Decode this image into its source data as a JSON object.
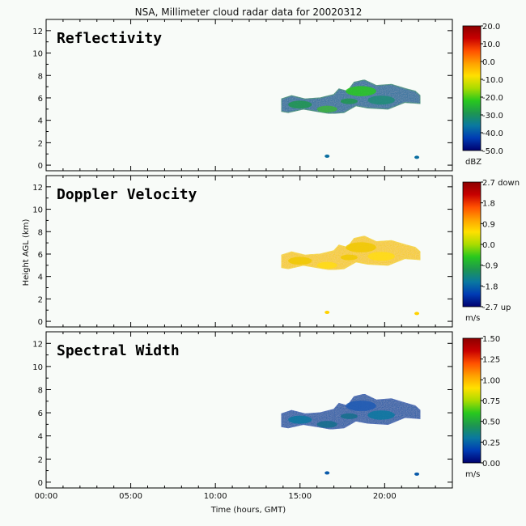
{
  "title": "NSA, Millimeter cloud radar data for 20020312",
  "xlabel": "Time (hours, GMT)",
  "ylabel": "Height AGL (km)",
  "chart_data": [
    {
      "type": "heatmap",
      "panel_title": "Reflectivity",
      "x_ticks": [
        "00:00",
        "05:00",
        "10:00",
        "15:00",
        "20:00"
      ],
      "x_tick_values": [
        0,
        5,
        10,
        15,
        20
      ],
      "xlim": [
        0,
        24
      ],
      "y_ticks": [
        "0",
        "2",
        "4",
        "6",
        "8",
        "10",
        "12"
      ],
      "y_tick_values": [
        0,
        2,
        4,
        6,
        8,
        10,
        12
      ],
      "ylim": [
        -0.5,
        13
      ],
      "colorbar": {
        "ticks": [
          "20.0",
          "10.0",
          "0.0",
          "-10.0",
          "-20.0",
          "-30.0",
          "-40.0",
          "-50.0"
        ],
        "range": [
          -50,
          20
        ],
        "unit": "dBZ"
      },
      "cloud": {
        "time_range": [
          13.9,
          22.1
        ],
        "base_km": 4.6,
        "top_km": 7.6,
        "fill": "low-mid"
      }
    },
    {
      "type": "heatmap",
      "panel_title": "Doppler Velocity",
      "x_ticks": [
        "00:00",
        "05:00",
        "10:00",
        "15:00",
        "20:00"
      ],
      "x_tick_values": [
        0,
        5,
        10,
        15,
        20
      ],
      "xlim": [
        0,
        24
      ],
      "y_ticks": [
        "0",
        "2",
        "4",
        "6",
        "8",
        "10",
        "12"
      ],
      "y_tick_values": [
        0,
        2,
        4,
        6,
        8,
        10,
        12
      ],
      "ylim": [
        -0.5,
        13
      ],
      "colorbar": {
        "ticks": [
          "2.7 down",
          "1.8",
          "0.9",
          "0.0",
          "-0.9",
          "-1.8",
          "-2.7 up"
        ],
        "range": [
          -2.7,
          2.7
        ],
        "unit": "m/s"
      },
      "cloud": {
        "time_range": [
          13.9,
          22.1
        ],
        "base_km": 4.6,
        "top_km": 7.6,
        "fill": "mid"
      }
    },
    {
      "type": "heatmap",
      "panel_title": "Spectral Width",
      "x_ticks": [
        "00:00",
        "05:00",
        "10:00",
        "15:00",
        "20:00"
      ],
      "x_tick_values": [
        0,
        5,
        10,
        15,
        20
      ],
      "xlim": [
        0,
        24
      ],
      "y_ticks": [
        "0",
        "2",
        "4",
        "6",
        "8",
        "10",
        "12"
      ],
      "y_tick_values": [
        0,
        2,
        4,
        6,
        8,
        10,
        12
      ],
      "ylim": [
        -0.5,
        13
      ],
      "colorbar": {
        "ticks": [
          "1.50",
          "1.25",
          "1.00",
          "0.75",
          "0.50",
          "0.25",
          "0.00"
        ],
        "range": [
          0,
          1.5
        ],
        "unit": "m/s"
      },
      "cloud": {
        "time_range": [
          13.9,
          22.1
        ],
        "base_km": 4.6,
        "top_km": 7.6,
        "fill": "low"
      }
    }
  ],
  "colors": {
    "background": "#f8fbf8",
    "frame": "#000000",
    "scale": [
      "#00006e",
      "#003cb4",
      "#0a78a0",
      "#1e9650",
      "#28c81e",
      "#aadc00",
      "#ffe000",
      "#ffa000",
      "#ff5000",
      "#c80000",
      "#8c0000"
    ]
  }
}
